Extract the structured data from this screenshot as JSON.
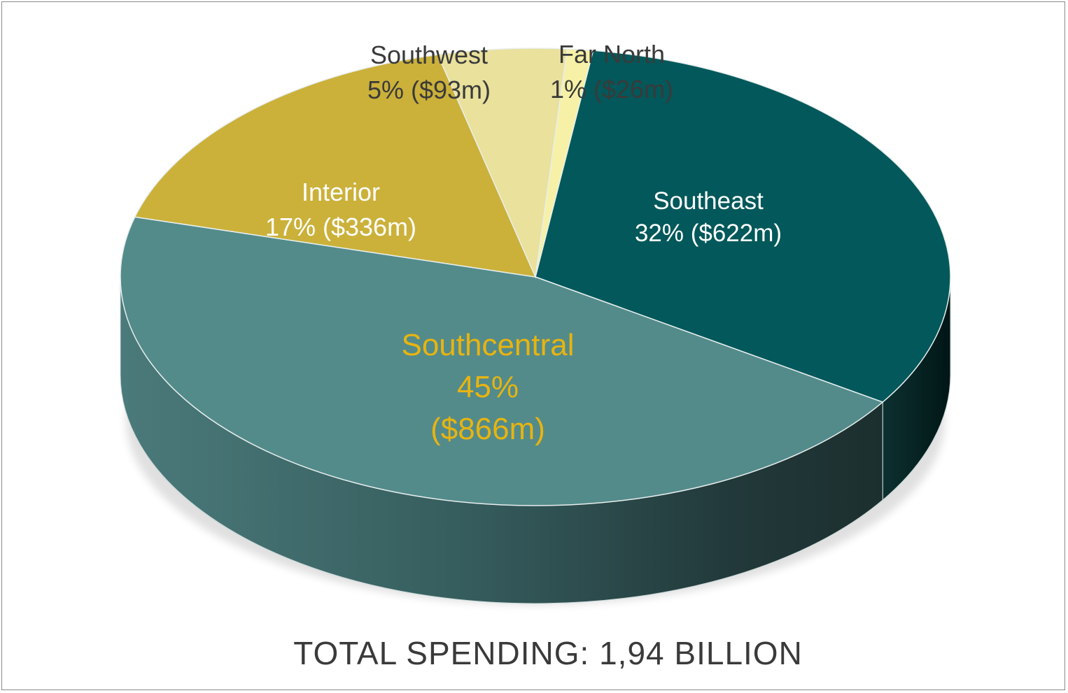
{
  "chart_data": {
    "type": "pie",
    "title": "TOTAL SPENDING: 1,94 BILLION",
    "slices": [
      {
        "name": "Southeast",
        "percent": 32,
        "amount": "$622m",
        "label_line1": "Southeast",
        "label_line2": "32% ($622m)",
        "color": "#02585a",
        "label_color": "#ffffff"
      },
      {
        "name": "Southcentral",
        "percent": 45,
        "amount": "$866m",
        "label_line1": "Southcentral",
        "label_line2": "45%",
        "label_line3": "($866m)",
        "color": "#538b8b",
        "label_color": "#e8b40f"
      },
      {
        "name": "Interior",
        "percent": 17,
        "amount": "$336m",
        "label_line1": "Interior",
        "label_line2": "17% ($336m)",
        "color": "#cbb13a",
        "label_color": "#ffffff"
      },
      {
        "name": "Southwest",
        "percent": 5,
        "amount": "$93m",
        "label_line1": "Southwest",
        "label_line2": "5% ($93m)",
        "color": "#e9e19c",
        "label_color": "#3a3a3a"
      },
      {
        "name": "Far North",
        "percent": 1,
        "amount": "$26m",
        "label_line1": "Far North",
        "label_line2": "1% ($26m)",
        "color": "#f6f1a6",
        "label_color": "#3a3a3a"
      }
    ]
  }
}
